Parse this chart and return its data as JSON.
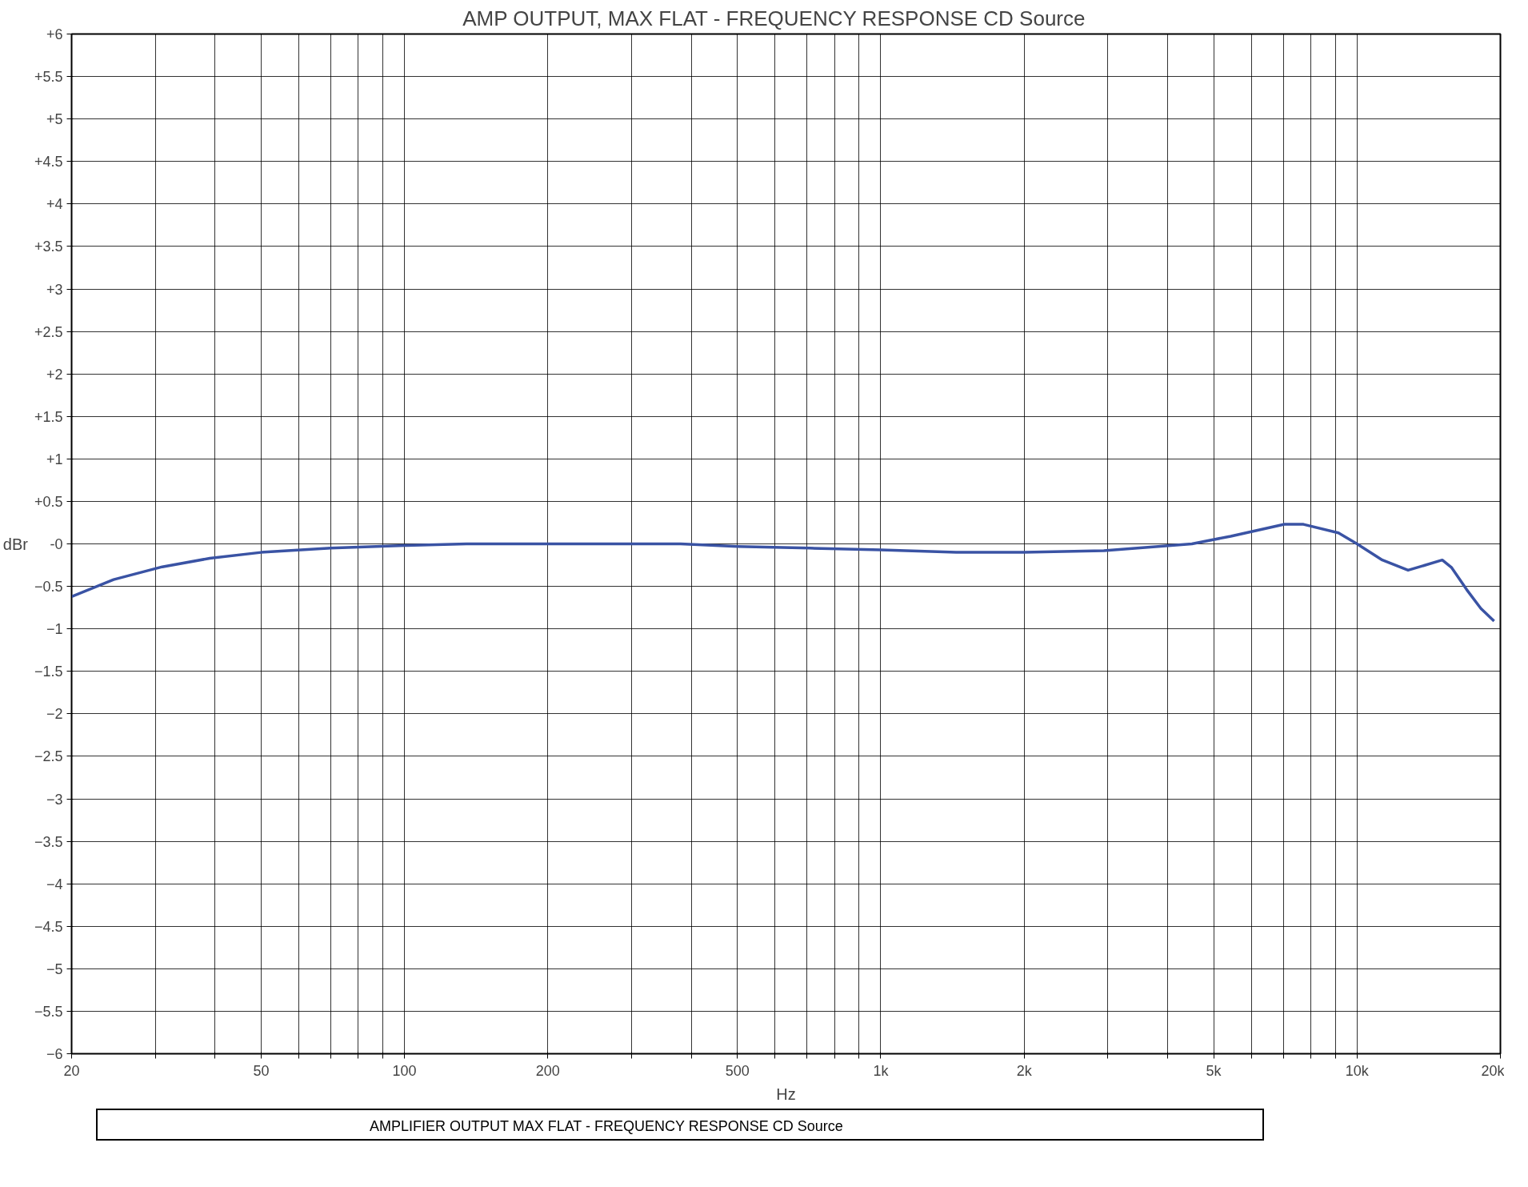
{
  "chart_data": {
    "type": "line",
    "title": "AMP OUTPUT, MAX FLAT  -  FREQUENCY RESPONSE   CD Source",
    "xlabel": "Hz",
    "ylabel": "dBr",
    "log": "x",
    "grid": true,
    "marker": "none",
    "line_style": "solid",
    "annotations": [
      "AMPLIFIER OUTPUT   MAX FLAT  -  FREQUENCY RESPONSE     CD Source"
    ],
    "xlim": [
      20,
      20000
    ],
    "xticks": [
      20,
      {
        "value": 30,
        "label": null
      },
      {
        "value": 40,
        "label": null
      },
      50,
      {
        "value": 60,
        "label": null
      },
      {
        "value": 70,
        "label": null
      },
      {
        "value": 80,
        "label": null
      },
      {
        "value": 90,
        "label": null
      },
      100,
      200,
      {
        "value": 300,
        "label": null
      },
      {
        "value": 400,
        "label": null
      },
      500,
      {
        "value": 600,
        "label": null
      },
      {
        "value": 700,
        "label": null
      },
      {
        "value": 800,
        "label": null
      },
      {
        "value": 900,
        "label": null
      },
      {
        "value": 1000,
        "label": "1k"
      },
      {
        "value": 2000,
        "label": "2k"
      },
      {
        "value": 3000,
        "label": null
      },
      {
        "value": 4000,
        "label": null
      },
      {
        "value": 5000,
        "label": "5k"
      },
      {
        "value": 6000,
        "label": null
      },
      {
        "value": 7000,
        "label": null
      },
      {
        "value": 8000,
        "label": null
      },
      {
        "value": 9000,
        "label": null
      },
      {
        "value": 10000,
        "label": "10k"
      },
      {
        "value": 20000,
        "label": "20k"
      }
    ],
    "ylim": [
      -6,
      6
    ],
    "yticks": [
      {
        "value": 6,
        "label": "+6"
      },
      {
        "value": 5.5,
        "label": "+5.5"
      },
      {
        "value": 5,
        "label": "+5"
      },
      {
        "value": 4.5,
        "label": "+4.5"
      },
      {
        "value": 4,
        "label": "+4"
      },
      {
        "value": 3.5,
        "label": "+3.5"
      },
      {
        "value": 3,
        "label": "+3"
      },
      {
        "value": 2.5,
        "label": "+2.5"
      },
      {
        "value": 2,
        "label": "+2"
      },
      {
        "value": 1.5,
        "label": "+1.5"
      },
      {
        "value": 1,
        "label": "+1"
      },
      {
        "value": 0.5,
        "label": "+0.5"
      },
      {
        "value": 0,
        "label": "-0"
      },
      -0.5,
      -1,
      -1.5,
      -2,
      -2.5,
      -3,
      -3.5,
      -4,
      -4.5,
      -5,
      -5.5,
      -6
    ],
    "x": [
      20,
      24.5,
      31,
      39,
      50,
      70,
      100,
      135,
      200,
      380,
      500,
      710,
      1000,
      1440,
      2000,
      2940,
      4500,
      5430,
      7040,
      7720,
      9140,
      10000,
      11300,
      12800,
      15100,
      15800,
      17000,
      18200,
      19400
    ],
    "series": [
      {
        "color": "#3a53a4",
        "values": [
          -0.62,
          -0.42,
          -0.27,
          -0.17,
          -0.1,
          -0.05,
          -0.02,
          0,
          0,
          0,
          -0.03,
          -0.05,
          -0.07,
          -0.1,
          -0.1,
          -0.08,
          0,
          0.09,
          0.23,
          0.23,
          0.13,
          0,
          -0.19,
          -0.31,
          -0.19,
          -0.28,
          -0.54,
          -0.76,
          -0.91
        ]
      }
    ]
  }
}
